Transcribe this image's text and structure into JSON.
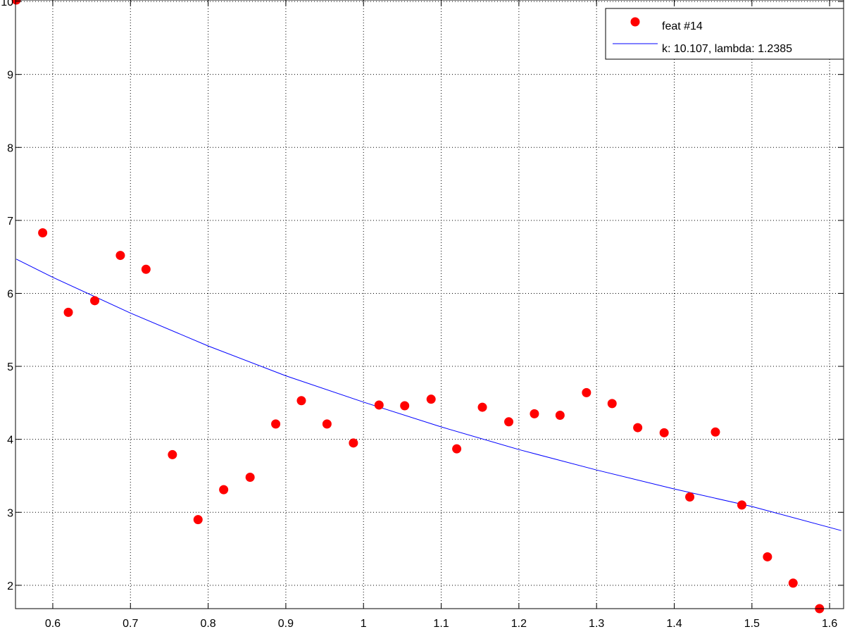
{
  "chart_data": {
    "type": "scatter",
    "title": "",
    "xlabel": "",
    "ylabel": "",
    "xlim": [
      0.552,
      1.618
    ],
    "ylim": [
      1.68,
      10.02
    ],
    "grid": true,
    "grid_style": "dotted",
    "legend_position": "top-right",
    "x_ticks": [
      0.6,
      0.7,
      0.8,
      0.9,
      1,
      1.1,
      1.2,
      1.3,
      1.4,
      1.5,
      1.6
    ],
    "x_tick_labels": [
      "0.6",
      "0.7",
      "0.8",
      "0.9",
      "1",
      "1.1",
      "1.2",
      "1.3",
      "1.4",
      "1.5",
      "1.6"
    ],
    "y_ticks": [
      2,
      3,
      4,
      5,
      6,
      7,
      8,
      9,
      10
    ],
    "y_tick_labels": [
      "2",
      "3",
      "4",
      "5",
      "6",
      "7",
      "8",
      "9",
      "10"
    ],
    "series": [
      {
        "name": "feat #14",
        "kind": "points",
        "color": "#ff0000",
        "x": [
          0.553,
          0.587,
          0.62,
          0.654,
          0.687,
          0.72,
          0.754,
          0.787,
          0.82,
          0.854,
          0.887,
          0.92,
          0.953,
          0.987,
          1.02,
          1.053,
          1.087,
          1.12,
          1.153,
          1.187,
          1.22,
          1.253,
          1.287,
          1.32,
          1.353,
          1.387,
          1.42,
          1.453,
          1.487,
          1.52,
          1.553,
          1.587
        ],
        "y": [
          10.02,
          6.83,
          5.74,
          5.9,
          6.52,
          6.33,
          3.79,
          2.9,
          3.31,
          3.48,
          4.21,
          4.53,
          4.21,
          3.95,
          4.47,
          4.46,
          4.55,
          3.87,
          4.44,
          4.24,
          4.35,
          4.33,
          4.64,
          4.49,
          4.16,
          4.09,
          3.21,
          4.1,
          3.1,
          2.39,
          2.03,
          1.68
        ]
      },
      {
        "name": "k: 10.107, lambda: 1.2385",
        "kind": "line",
        "color": "#0000ff",
        "x": [
          0.553,
          0.6,
          0.7,
          0.8,
          0.9,
          1.0,
          1.1,
          1.2,
          1.3,
          1.4,
          1.5,
          1.615
        ],
        "y": [
          6.47,
          6.22,
          5.73,
          5.28,
          4.87,
          4.51,
          4.17,
          3.86,
          3.58,
          3.32,
          3.08,
          2.75
        ]
      }
    ]
  }
}
